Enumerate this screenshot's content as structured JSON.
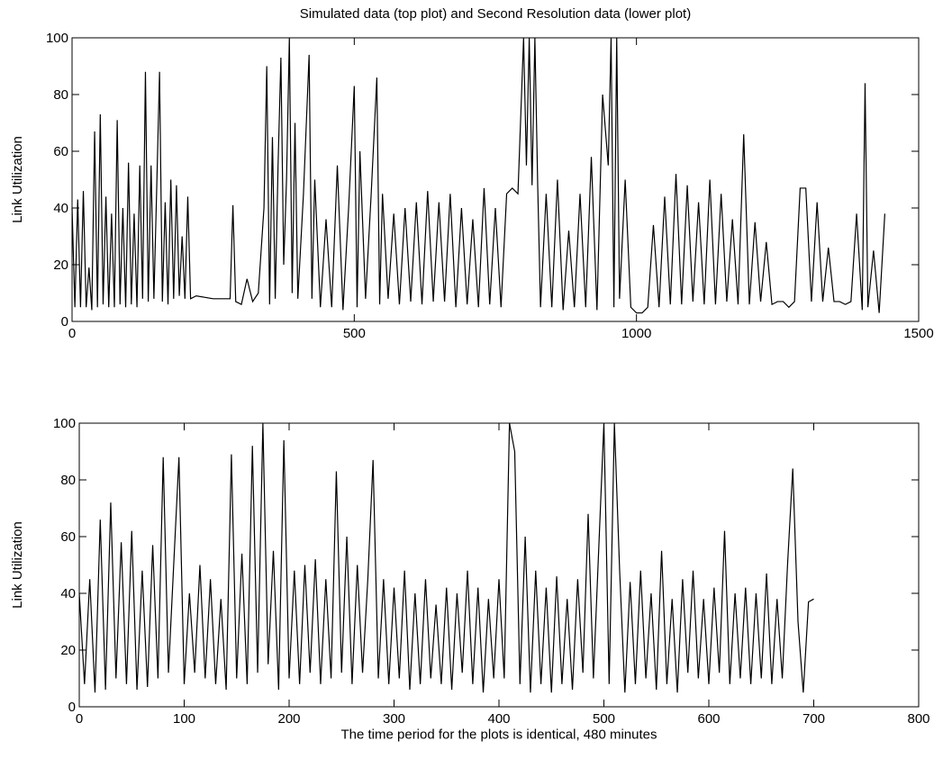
{
  "chart_data": [
    {
      "type": "line",
      "title": "Simulated data (top plot) and Second Resolution data (lower plot)",
      "ylabel": "Link Utilization",
      "xlim": [
        0,
        1500
      ],
      "xticks": [
        0,
        500,
        1000,
        1500
      ],
      "ylim": [
        0,
        100
      ],
      "yticks": [
        0,
        20,
        40,
        60,
        80,
        100
      ],
      "grid": false,
      "series": [
        {
          "color": "#000000",
          "x": [
            0,
            5,
            10,
            15,
            20,
            25,
            30,
            35,
            40,
            45,
            50,
            55,
            60,
            65,
            70,
            75,
            80,
            85,
            90,
            95,
            100,
            105,
            110,
            115,
            120,
            125,
            130,
            135,
            140,
            145,
            150,
            155,
            160,
            165,
            170,
            175,
            180,
            185,
            190,
            195,
            200,
            205,
            210,
            220,
            250,
            270,
            280,
            285,
            290,
            300,
            310,
            320,
            330,
            340,
            345,
            350,
            355,
            360,
            365,
            370,
            375,
            380,
            385,
            390,
            395,
            400,
            410,
            420,
            425,
            430,
            440,
            450,
            460,
            470,
            480,
            490,
            500,
            505,
            510,
            520,
            530,
            540,
            545,
            550,
            560,
            570,
            580,
            590,
            600,
            610,
            620,
            630,
            640,
            650,
            660,
            670,
            680,
            690,
            700,
            710,
            720,
            730,
            740,
            750,
            760,
            770,
            780,
            790,
            800,
            805,
            810,
            815,
            820,
            825,
            830,
            840,
            850,
            860,
            870,
            880,
            890,
            900,
            910,
            920,
            930,
            940,
            950,
            955,
            960,
            965,
            970,
            980,
            990,
            1000,
            1010,
            1020,
            1030,
            1040,
            1050,
            1060,
            1070,
            1080,
            1090,
            1100,
            1110,
            1120,
            1130,
            1140,
            1150,
            1160,
            1170,
            1180,
            1190,
            1200,
            1210,
            1220,
            1230,
            1240,
            1250,
            1260,
            1270,
            1280,
            1290,
            1300,
            1310,
            1320,
            1330,
            1340,
            1350,
            1360,
            1370,
            1380,
            1390,
            1400,
            1405,
            1410,
            1420,
            1430,
            1440
          ],
          "values": [
            40,
            5,
            43,
            5,
            46,
            5,
            19,
            4,
            67,
            5,
            73,
            6,
            44,
            5,
            38,
            5,
            71,
            6,
            40,
            5,
            56,
            6,
            38,
            5,
            55,
            8,
            88,
            7,
            55,
            8,
            47,
            88,
            7,
            42,
            6,
            50,
            8,
            48,
            9,
            30,
            8,
            44,
            8,
            9,
            8,
            8,
            8,
            41,
            7,
            6,
            15,
            7,
            10,
            40,
            90,
            6,
            65,
            8,
            55,
            93,
            20,
            50,
            100,
            10,
            70,
            8,
            45,
            94,
            8,
            50,
            5,
            36,
            5,
            55,
            4,
            40,
            83,
            5,
            60,
            8,
            45,
            86,
            6,
            45,
            8,
            38,
            6,
            40,
            7,
            42,
            6,
            46,
            7,
            42,
            7,
            45,
            5,
            40,
            6,
            36,
            5,
            47,
            6,
            40,
            5,
            45,
            47,
            45,
            100,
            55,
            100,
            48,
            100,
            48,
            5,
            45,
            5,
            50,
            4,
            32,
            5,
            45,
            5,
            58,
            4,
            80,
            55,
            100,
            5,
            100,
            8,
            50,
            5,
            3,
            3,
            5,
            34,
            5,
            44,
            6,
            52,
            6,
            48,
            7,
            42,
            6,
            50,
            6,
            45,
            7,
            36,
            6,
            66,
            6,
            35,
            7,
            28,
            6,
            7,
            7,
            5,
            7,
            47,
            47,
            7,
            42,
            7,
            26,
            7,
            7,
            6,
            7,
            38,
            4,
            84,
            5,
            25,
            3,
            38
          ]
        }
      ]
    },
    {
      "type": "line",
      "ylabel": "Link Utilization",
      "xlabel": "The time period for the plots is identical, 480 minutes",
      "xlim": [
        0,
        800
      ],
      "xticks": [
        0,
        100,
        200,
        300,
        400,
        500,
        600,
        700,
        800
      ],
      "ylim": [
        0,
        100
      ],
      "yticks": [
        0,
        20,
        40,
        60,
        80,
        100
      ],
      "grid": false,
      "series": [
        {
          "color": "#000000",
          "x": [
            0,
            5,
            10,
            15,
            20,
            25,
            30,
            35,
            40,
            45,
            50,
            55,
            60,
            65,
            70,
            75,
            80,
            85,
            90,
            95,
            100,
            105,
            110,
            115,
            120,
            125,
            130,
            135,
            140,
            145,
            150,
            155,
            160,
            165,
            170,
            175,
            180,
            185,
            190,
            195,
            200,
            205,
            210,
            215,
            220,
            225,
            230,
            235,
            240,
            245,
            250,
            255,
            260,
            265,
            270,
            275,
            280,
            285,
            290,
            295,
            300,
            305,
            310,
            315,
            320,
            325,
            330,
            335,
            340,
            345,
            350,
            355,
            360,
            365,
            370,
            375,
            380,
            385,
            390,
            395,
            400,
            405,
            410,
            415,
            420,
            425,
            430,
            435,
            440,
            445,
            450,
            455,
            460,
            465,
            470,
            475,
            480,
            485,
            490,
            495,
            500,
            505,
            510,
            515,
            520,
            525,
            530,
            535,
            540,
            545,
            550,
            555,
            560,
            565,
            570,
            575,
            580,
            585,
            590,
            595,
            600,
            605,
            610,
            615,
            620,
            625,
            630,
            635,
            640,
            645,
            650,
            655,
            660,
            665,
            670,
            675,
            680,
            685,
            690,
            695,
            700
          ],
          "values": [
            40,
            8,
            45,
            5,
            66,
            6,
            72,
            10,
            58,
            8,
            62,
            6,
            48,
            7,
            57,
            10,
            88,
            12,
            50,
            88,
            8,
            40,
            12,
            50,
            10,
            45,
            8,
            38,
            6,
            89,
            10,
            54,
            8,
            92,
            12,
            100,
            15,
            55,
            6,
            94,
            10,
            48,
            8,
            50,
            12,
            52,
            8,
            45,
            10,
            83,
            12,
            60,
            8,
            50,
            12,
            45,
            87,
            10,
            45,
            8,
            42,
            10,
            48,
            6,
            40,
            8,
            45,
            10,
            36,
            8,
            42,
            6,
            40,
            12,
            48,
            8,
            42,
            5,
            38,
            10,
            45,
            10,
            100,
            90,
            8,
            60,
            5,
            48,
            8,
            42,
            5,
            46,
            8,
            38,
            6,
            45,
            12,
            68,
            10,
            55,
            100,
            8,
            100,
            48,
            5,
            44,
            8,
            48,
            10,
            40,
            6,
            55,
            8,
            38,
            5,
            45,
            12,
            48,
            10,
            38,
            8,
            42,
            12,
            62,
            8,
            40,
            10,
            42,
            8,
            40,
            10,
            47,
            8,
            38,
            10,
            50,
            84,
            30,
            5,
            37,
            38
          ]
        }
      ]
    }
  ]
}
